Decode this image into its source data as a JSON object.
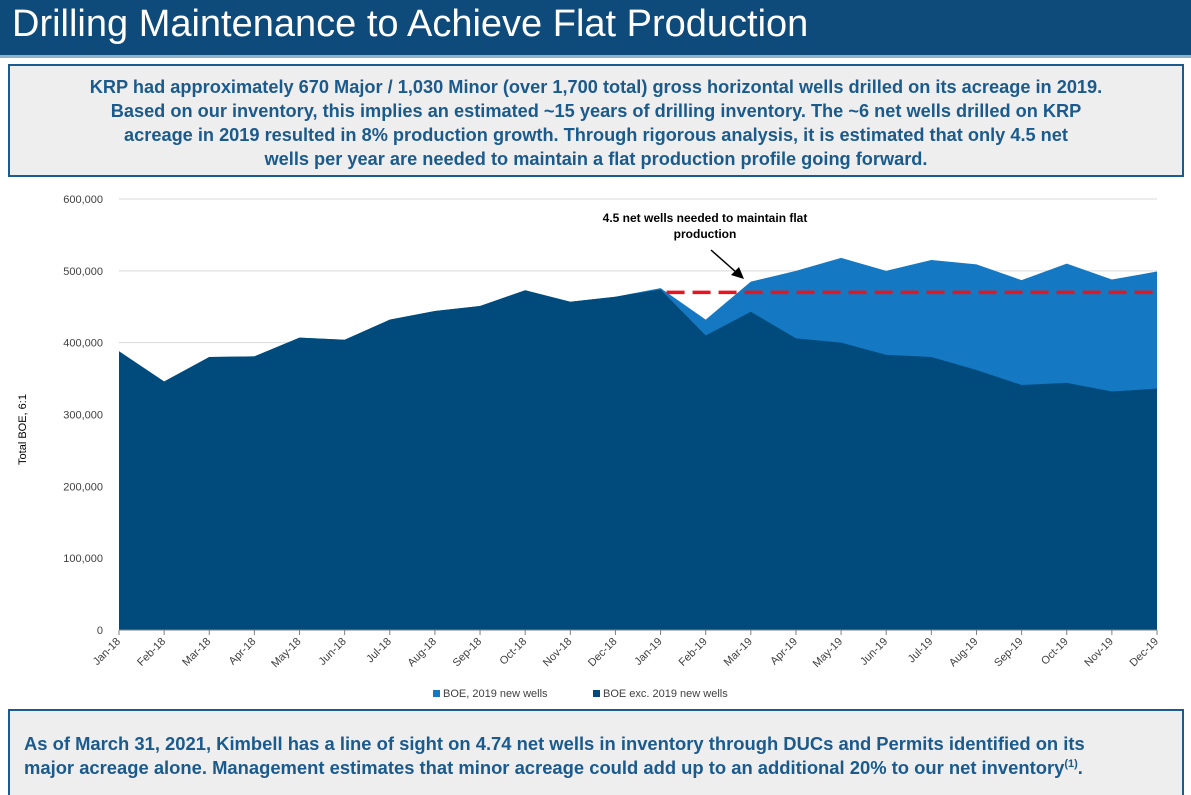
{
  "header": {
    "title": "Drilling Maintenance to Achieve Flat Production"
  },
  "top_box": {
    "lines": [
      "KRP had approximately 670 Major / 1,030 Minor (over 1,700 total) gross horizontal wells drilled on its acreage in 2019.",
      "Based on our inventory, this implies an estimated ~15 years of drilling inventory. The ~6 net wells drilled on KRP",
      "acreage in 2019 resulted in 8% production growth. Through rigorous analysis, it is estimated that only 4.5 net",
      "wells per year are needed to maintain a flat production profile going forward."
    ]
  },
  "bottom_box": {
    "line1": "As of March 31, 2021, Kimbell has a line of sight on 4.74 net wells in inventory through DUCs and Permits identified on its",
    "line2": "major acreage alone. Management estimates that minor acreage could add up to an additional 20% to our net inventory",
    "footnote": "(1)",
    "end": "."
  },
  "colors": {
    "title_bg": "#0e4a7a",
    "dark_series": "#004b7b",
    "light_series": "#1478c3",
    "flat_line": "#e8141e",
    "text_blue": "#1b5a8d"
  },
  "chart_data": {
    "type": "area",
    "stacked": true,
    "ylabel": "Total BOE, 6:1",
    "ylim": [
      0,
      600000
    ],
    "yticks": [
      "0",
      "100,000",
      "200,000",
      "300,000",
      "400,000",
      "500,000",
      "600,000"
    ],
    "grid": true,
    "legend_position": "bottom",
    "categories": [
      "Jan-18",
      "Feb-18",
      "Mar-18",
      "Apr-18",
      "May-18",
      "Jun-18",
      "Jul-18",
      "Aug-18",
      "Sep-18",
      "Oct-18",
      "Nov-18",
      "Dec-18",
      "Jan-19",
      "Feb-19",
      "Mar-19",
      "Apr-19",
      "May-19",
      "Jun-19",
      "Jul-19",
      "Aug-19",
      "Sep-19",
      "Oct-19",
      "Nov-19",
      "Dec-19"
    ],
    "series": [
      {
        "name": "BOE exc. 2019 new wells",
        "color": "#004b7b",
        "values": [
          388000,
          346000,
          380000,
          381000,
          407000,
          404000,
          432000,
          444000,
          451000,
          473000,
          457000,
          464000,
          474000,
          410000,
          443000,
          406000,
          400000,
          383000,
          380000,
          362000,
          341000,
          344000,
          332000,
          336000
        ]
      },
      {
        "name": "BOE, 2019 new wells",
        "color": "#1478c3",
        "values": [
          0,
          0,
          0,
          0,
          0,
          0,
          0,
          0,
          0,
          0,
          0,
          0,
          2000,
          22000,
          42000,
          94000,
          118000,
          117000,
          135000,
          147000,
          146000,
          166000,
          156000,
          163000
        ]
      }
    ],
    "legend": [
      "BOE, 2019 new wells",
      "BOE exc. 2019 new wells"
    ],
    "flat_line": {
      "value": 470000,
      "from": "Jan-19",
      "to": "Dec-19"
    },
    "annotation": {
      "text_line1": "4.5 net wells needed to maintain flat",
      "text_line2": "production",
      "target": "Mar-19"
    }
  }
}
